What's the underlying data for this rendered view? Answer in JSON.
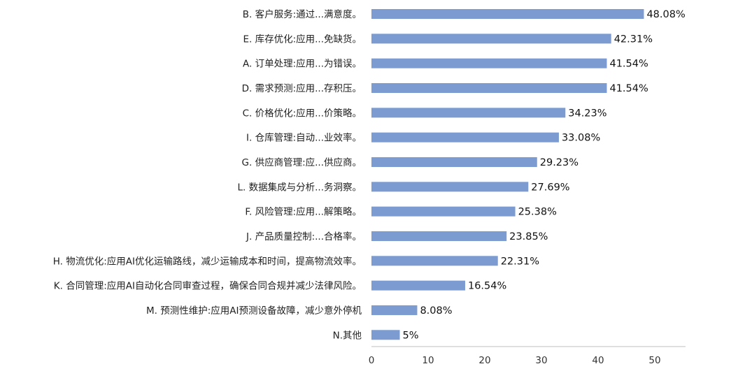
{
  "chart_data": {
    "type": "bar",
    "orientation": "horizontal",
    "categories": [
      "B. 客户服务:通过...满意度。",
      "E. 库存优化:应用...免缺货。",
      "A. 订单处理:应用...为错误。",
      "D. 需求预测:应用...存积压。",
      "C. 价格优化:应用...价策略。",
      "I. 仓库管理:自动...业效率。",
      "G. 供应商管理:应...供应商。",
      "L. 数据集成与分析...务洞察。",
      "F. 风险管理:应用...解策略。",
      "J. 产品质量控制:...合格率。",
      "H. 物流优化:应用AI优化运输路线，减少运输成本和时间，提高物流效率。",
      "K. 合同管理:应用AI自动化合同审查过程，确保合同合规并减少法律风险。",
      "M. 预测性维护:应用AI预测设备故障，减少意外停机",
      "N.其他"
    ],
    "values": [
      48.08,
      42.31,
      41.54,
      41.54,
      34.23,
      33.08,
      29.23,
      27.69,
      25.38,
      23.85,
      22.31,
      16.54,
      8.08,
      5
    ],
    "value_labels": [
      "48.08%",
      "42.31%",
      "41.54%",
      "41.54%",
      "34.23%",
      "33.08%",
      "29.23%",
      "27.69%",
      "25.38%",
      "23.85%",
      "22.31%",
      "16.54%",
      "8.08%",
      "5%"
    ],
    "x_ticks": [
      "0",
      "10",
      "20",
      "30",
      "40",
      "50"
    ],
    "xlim": [
      0,
      55
    ],
    "title": "",
    "xlabel": "",
    "ylabel": "",
    "grid": false,
    "bar_color": "#7b9bd1",
    "axis_color": "#bfbfbf"
  }
}
